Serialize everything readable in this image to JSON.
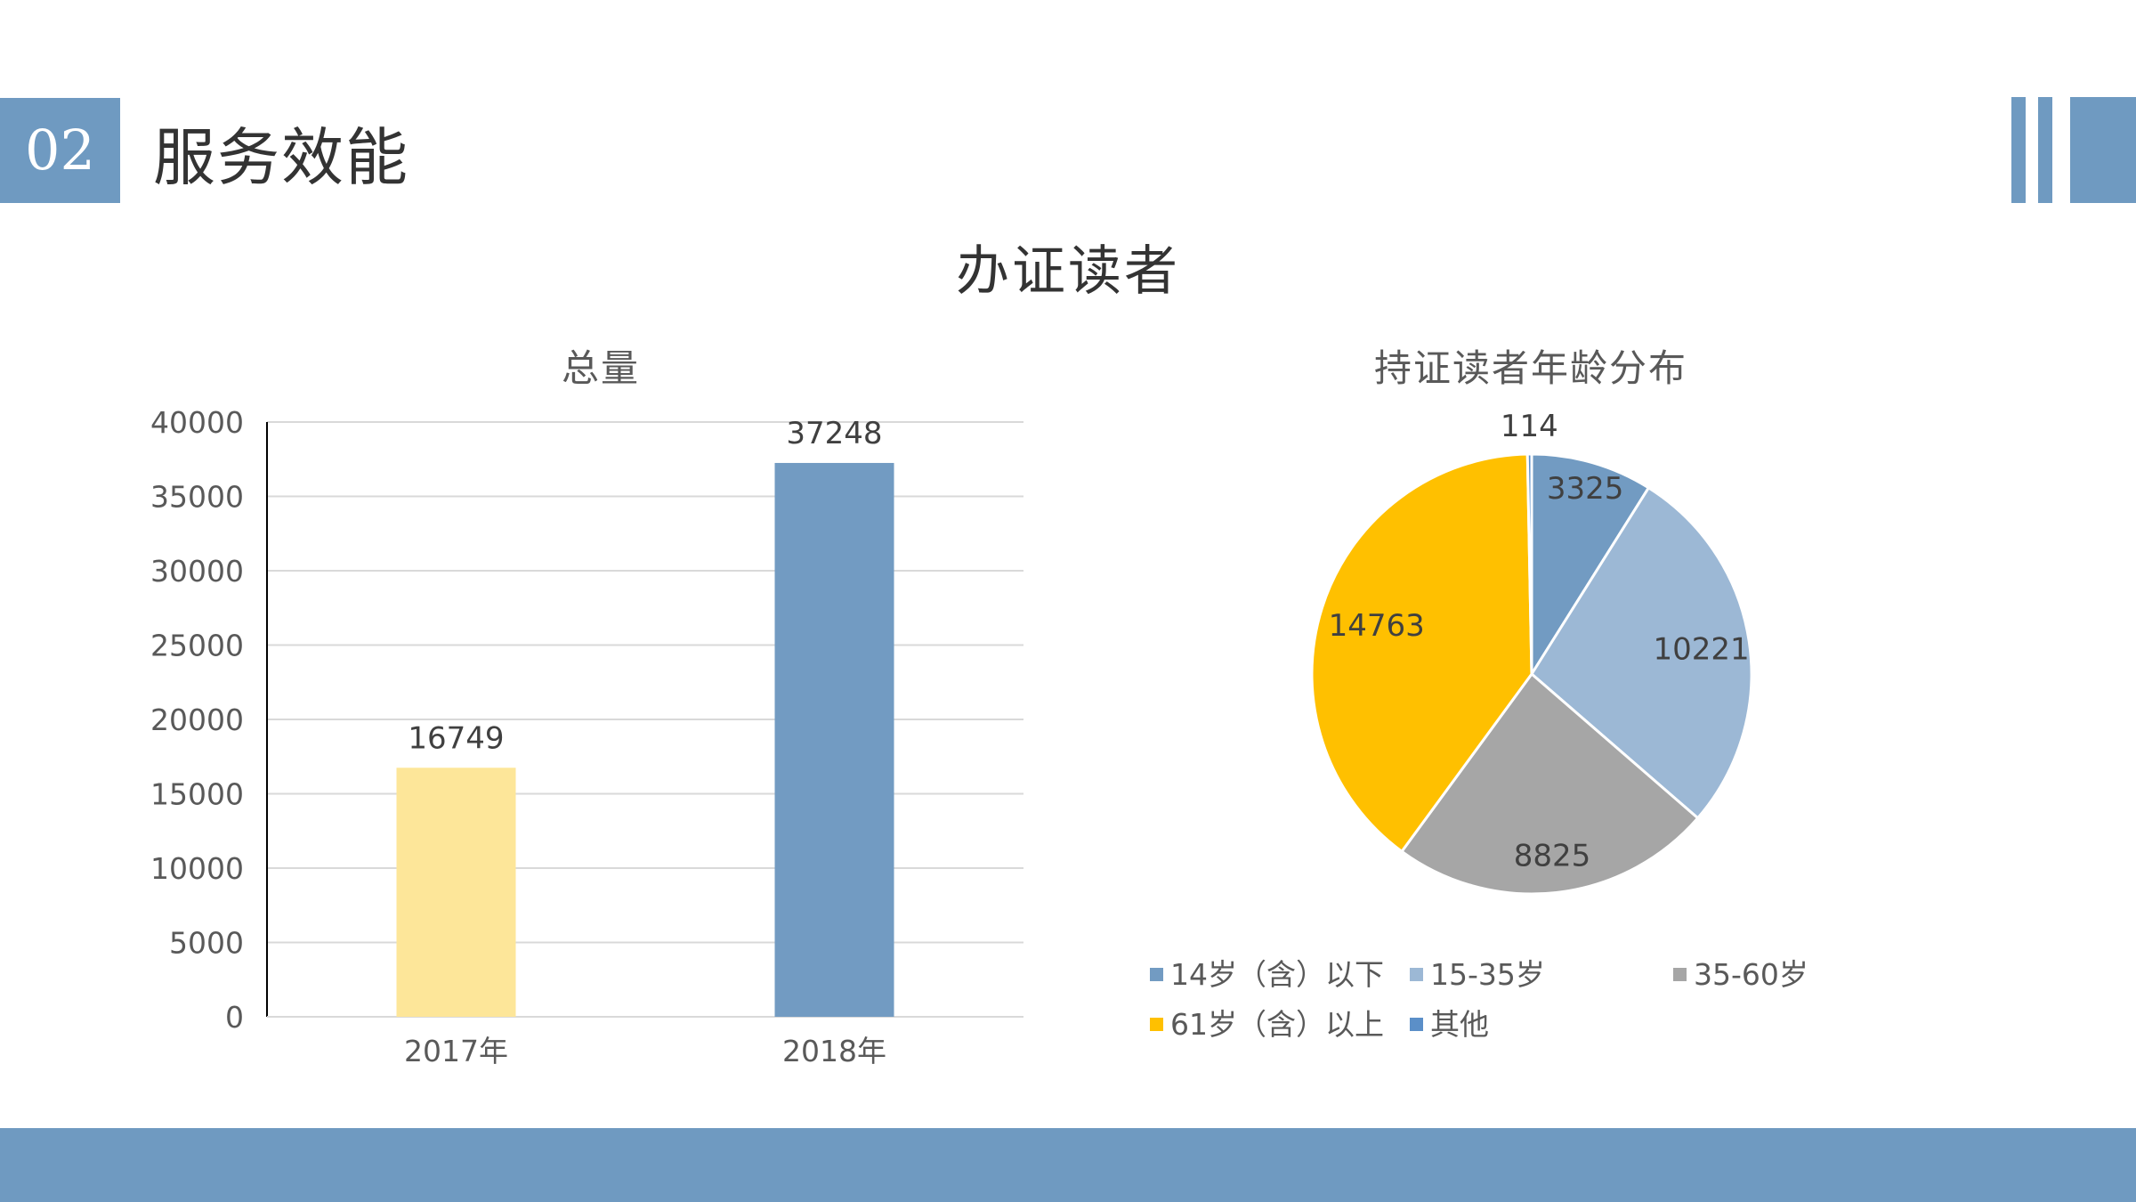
{
  "header": {
    "section_number": "02",
    "section_title": "服务效能"
  },
  "main_title": "办证读者",
  "colors": {
    "accent": "#6f9ac1",
    "bar_2017": "#fde699",
    "bar_2018": "#729bc2",
    "pie": [
      "#729bc2",
      "#9cb8d5",
      "#a6a6a6",
      "#ffc000",
      "#5b8fc8"
    ]
  },
  "chart_data": [
    {
      "type": "bar",
      "title": "总量",
      "categories": [
        "2017年",
        "2018年"
      ],
      "values": [
        16749,
        37248
      ],
      "data_labels": [
        "16749",
        "37248"
      ],
      "ylim": [
        0,
        40000
      ],
      "yticks": [
        0,
        5000,
        10000,
        15000,
        20000,
        25000,
        30000,
        35000,
        40000
      ],
      "ytick_labels": [
        "0",
        "5000",
        "10000",
        "15000",
        "20000",
        "25000",
        "30000",
        "35000",
        "40000"
      ],
      "grid": true,
      "xlabel": "",
      "ylabel": ""
    },
    {
      "type": "pie",
      "title": "持证读者年龄分布",
      "labels": [
        "14岁（含）以下",
        "15-35岁",
        "35-60岁",
        "61岁（含）以上",
        "其他"
      ],
      "values": [
        3325,
        10221,
        8825,
        14763,
        114
      ],
      "data_labels": [
        "3325",
        "10221",
        "8825",
        "14763",
        "114"
      ],
      "legend_position": "bottom"
    }
  ]
}
